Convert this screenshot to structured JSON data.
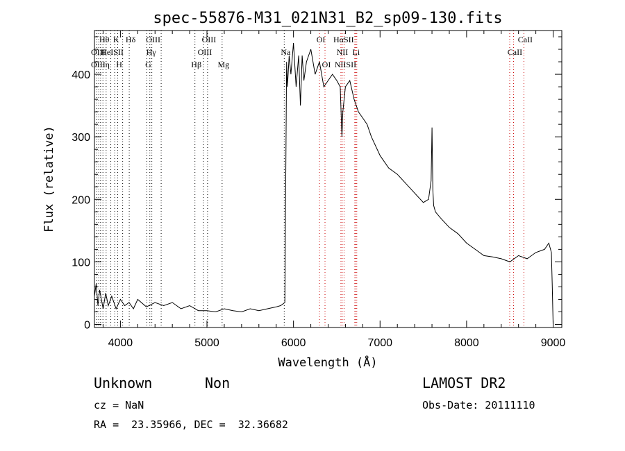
{
  "chart_data": {
    "type": "line",
    "title": "spec-55876-M31_021N31_B2_sp09-130.fits",
    "xlabel": "Wavelength (Å)",
    "ylabel": "Flux (relative)",
    "xlim": [
      3700,
      9100
    ],
    "ylim": [
      -5,
      470
    ],
    "x_ticks": [
      4000,
      5000,
      6000,
      7000,
      8000,
      9000
    ],
    "y_ticks": [
      0,
      100,
      200,
      300,
      400
    ],
    "grid": false,
    "series": [
      {
        "x": [
          3700,
          3720,
          3740,
          3760,
          3780,
          3800,
          3830,
          3860,
          3900,
          3950,
          4000,
          4050,
          4100,
          4150,
          4200,
          4300,
          4400,
          4500,
          4600,
          4700,
          4800,
          4900,
          5000,
          5100,
          5200,
          5300,
          5400,
          5500,
          5600,
          5700,
          5800,
          5850,
          5900,
          5920,
          5930,
          5950,
          5970,
          6000,
          6030,
          6060,
          6080,
          6100,
          6120,
          6150,
          6200,
          6250,
          6300,
          6350,
          6400,
          6450,
          6500,
          6540,
          6560,
          6570,
          6600,
          6650,
          6700,
          6750,
          6800,
          6850,
          6900,
          7000,
          7100,
          7200,
          7300,
          7400,
          7500,
          7560,
          7590,
          7600,
          7610,
          7620,
          7640,
          7700,
          7800,
          7900,
          8000,
          8100,
          8200,
          8300,
          8400,
          8500,
          8600,
          8700,
          8800,
          8900,
          8950,
          8980,
          8990,
          9000
        ],
        "y": [
          45,
          65,
          30,
          55,
          40,
          25,
          50,
          30,
          45,
          25,
          40,
          30,
          35,
          25,
          40,
          28,
          35,
          30,
          35,
          25,
          30,
          22,
          22,
          20,
          25,
          22,
          20,
          25,
          22,
          25,
          28,
          30,
          35,
          420,
          380,
          430,
          400,
          450,
          380,
          430,
          350,
          430,
          390,
          420,
          440,
          400,
          420,
          380,
          390,
          400,
          390,
          380,
          300,
          340,
          380,
          390,
          360,
          340,
          330,
          320,
          300,
          270,
          250,
          240,
          225,
          210,
          195,
          200,
          230,
          315,
          215,
          190,
          180,
          170,
          155,
          145,
          130,
          120,
          110,
          108,
          105,
          100,
          110,
          105,
          115,
          120,
          130,
          115,
          60,
          0
        ]
      }
    ],
    "lines": [
      {
        "label": "Hθ",
        "x": 3798,
        "row": 1,
        "color": "#000000"
      },
      {
        "label": "K",
        "x": 3934,
        "row": 1,
        "color": "#000000"
      },
      {
        "label": "Hδ",
        "x": 4102,
        "row": 1,
        "color": "#000000"
      },
      {
        "label": "OIII",
        "x": 4363,
        "row": 1,
        "color": "#000000"
      },
      {
        "label": "OIII",
        "x": 5007,
        "row": 1,
        "color": "#000000"
      },
      {
        "label": "OI",
        "x": 6300,
        "row": 1,
        "color": "#cc0000"
      },
      {
        "label": "HαSII",
        "x": 6563,
        "row": 1,
        "color": "#cc0000"
      },
      {
        "label": "CaII",
        "x": 8662,
        "row": 1,
        "color": "#cc0000"
      },
      {
        "label": "OIII",
        "x": 3727,
        "row": 2,
        "color": "#000000"
      },
      {
        "label": "HeISII",
        "x": 3889,
        "row": 2,
        "color": "#000000"
      },
      {
        "label": "Hγ",
        "x": 4340,
        "row": 2,
        "color": "#000000"
      },
      {
        "label": "OIII",
        "x": 4959,
        "row": 2,
        "color": "#000000"
      },
      {
        "label": "Na",
        "x": 5893,
        "row": 2,
        "color": "#000000"
      },
      {
        "label": "NII",
        "x": 6548,
        "row": 2,
        "color": "#cc0000"
      },
      {
        "label": "Li",
        "x": 6708,
        "row": 2,
        "color": "#cc0000"
      },
      {
        "label": "CaII",
        "x": 8542,
        "row": 2,
        "color": "#cc0000"
      },
      {
        "label": "OIII",
        "x": 3727,
        "row": 3,
        "color": "#000000"
      },
      {
        "label": "η",
        "x": 3835,
        "row": 3,
        "color": "#000000"
      },
      {
        "label": "H",
        "x": 3969,
        "row": 3,
        "color": "#000000"
      },
      {
        "label": "G",
        "x": 4305,
        "row": 3,
        "color": "#000000"
      },
      {
        "label": "Hβ",
        "x": 4861,
        "row": 3,
        "color": "#000000"
      },
      {
        "label": "Mg",
        "x": 5175,
        "row": 3,
        "color": "#000000"
      },
      {
        "label": "OI",
        "x": 6364,
        "row": 3,
        "color": "#cc0000"
      },
      {
        "label": "NIISII",
        "x": 6584,
        "row": 3,
        "color": "#cc0000"
      }
    ],
    "extra_marker_lines": [
      3750,
      3771,
      4026,
      4471,
      6717,
      6731,
      8498
    ]
  },
  "info": {
    "class": "Unknown",
    "subclass": "Non",
    "survey": "LAMOST DR2",
    "cz": "cz = NaN",
    "obs_date": "Obs-Date: 20111110",
    "coords": "RA =  23.35966, DEC =  32.36682"
  }
}
